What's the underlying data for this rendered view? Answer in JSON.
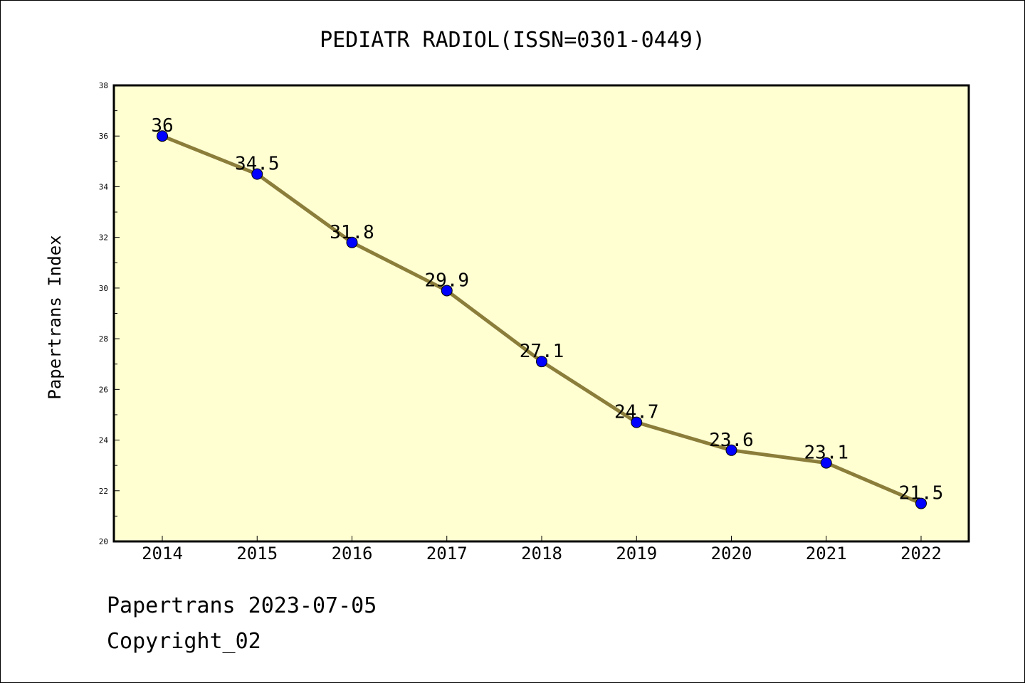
{
  "chart_data": {
    "type": "line",
    "title": "PEDIATR RADIOL(ISSN=0301-0449)",
    "xlabel": "",
    "ylabel": "Papertrans Index",
    "categories": [
      "2014",
      "2015",
      "2016",
      "2017",
      "2018",
      "2019",
      "2020",
      "2021",
      "2022"
    ],
    "series": [
      {
        "values": [
          36,
          34.5,
          31.8,
          29.9,
          27.1,
          24.7,
          23.6,
          23.1,
          21.5
        ],
        "data_labels": [
          "36",
          "34.5",
          "31.8",
          "29.9",
          "27.1",
          "24.7",
          "23.6",
          "23.1",
          "21.5"
        ]
      }
    ],
    "ylim": [
      20,
      38
    ],
    "yticks": [
      20,
      22,
      24,
      26,
      28,
      30,
      32,
      34,
      36,
      38
    ],
    "grid": false,
    "legend": "none",
    "colors": {
      "plot_background": "#ffffd2",
      "line": "#8b7d3a",
      "marker": "#0000ff",
      "axes": "#000000"
    }
  },
  "footer": {
    "date_line": "Papertrans 2023-07-05",
    "copyright_line": "Copyright_02"
  }
}
